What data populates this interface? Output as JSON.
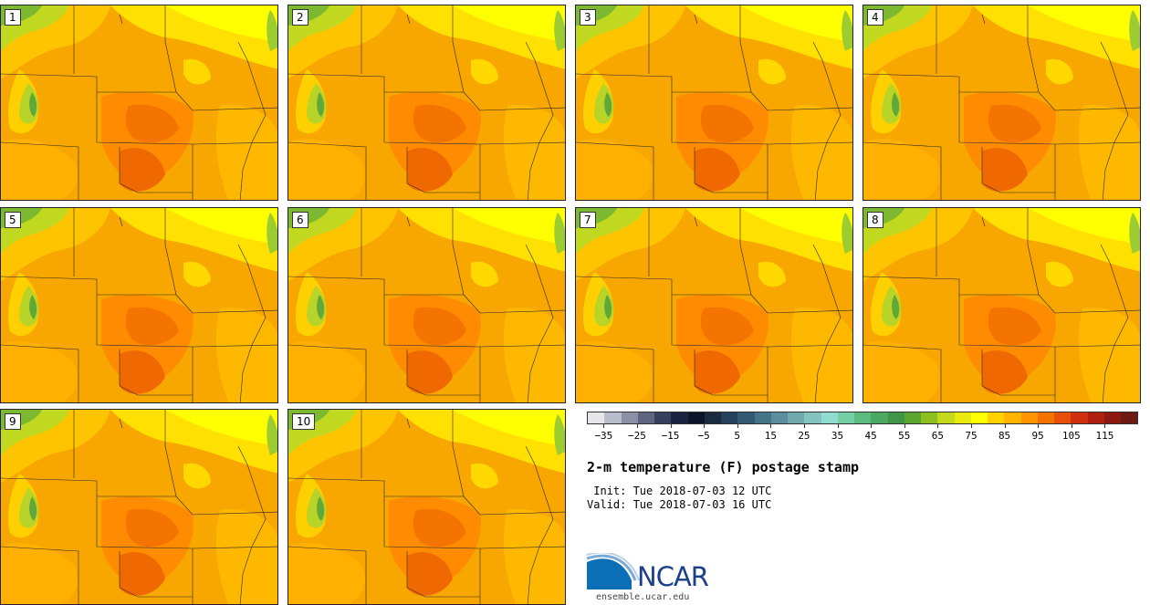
{
  "panels": [
    "1",
    "2",
    "3",
    "4",
    "5",
    "6",
    "7",
    "8",
    "9",
    "10"
  ],
  "colorbar": {
    "colors": [
      "#e6e6ea",
      "#b9bccb",
      "#8b90a6",
      "#5d6580",
      "#35405f",
      "#1a2340",
      "#0b1428",
      "#1a2b40",
      "#25405a",
      "#345a73",
      "#447488",
      "#5a8e9e",
      "#6fa8ad",
      "#84c3bf",
      "#90dccf",
      "#74cfa5",
      "#5cbc80",
      "#4aa862",
      "#3f9548",
      "#5aa530",
      "#8cc020",
      "#c4d81c",
      "#eaea10",
      "#ffff00",
      "#ffd200",
      "#ffb400",
      "#ff9400",
      "#f47200",
      "#e85008",
      "#d03010",
      "#b01e10",
      "#8c1810",
      "#6e1a14"
    ],
    "tick_labels": [
      "-35",
      "-25",
      "-15",
      "-5",
      "5",
      "15",
      "25",
      "35",
      "45",
      "55",
      "65",
      "75",
      "85",
      "95",
      "105",
      "115"
    ],
    "min": -40,
    "max": 125
  },
  "title": "2-m temperature (F) postage stamp",
  "init": " Init: Tue 2018-07-03 12 UTC",
  "valid": "Valid: Tue 2018-07-03 16 UTC",
  "logo_text": "NCAR",
  "site": "ensemble.ucar.edu"
}
